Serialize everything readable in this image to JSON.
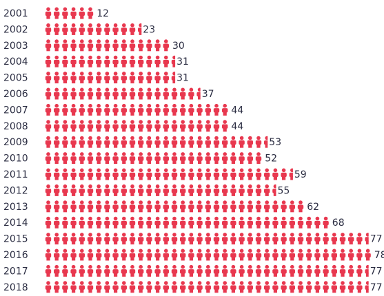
{
  "chart_data": {
    "type": "pictogram",
    "color": "#e8384f",
    "categories": [
      "2001",
      "2002",
      "2003",
      "2004",
      "2005",
      "2006",
      "2007",
      "2008",
      "2009",
      "2010",
      "2011",
      "2012",
      "2013",
      "2014",
      "2015",
      "2016",
      "2017",
      "2018"
    ],
    "values": [
      12,
      23,
      30,
      31,
      31,
      37,
      44,
      44,
      53,
      52,
      59,
      55,
      62,
      68,
      77,
      78,
      77,
      77
    ]
  }
}
